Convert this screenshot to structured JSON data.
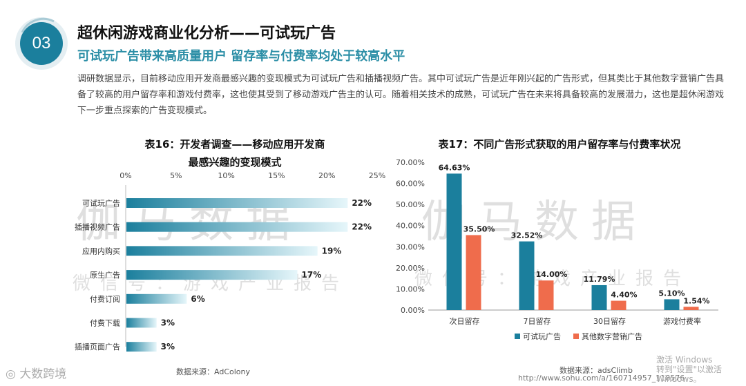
{
  "section": {
    "number": "03",
    "title": "超休闲游戏商业化分析——可试玩广告",
    "subtitle": "可试玩广告带来高质量用户  留存率与付费率均处于较高水平",
    "paragraph": "调研数据显示，目前移动应用开发商最感兴趣的变现模式为可试玩广告和插播视频广告。其中可试玩广告是近年刚兴起的广告形式，但其类比于其他数字营销广告具备了较高的用户留存率和游戏付费率，这也使其受到了移动游戏广告主的认可。随着相关技术的成熟，可试玩广告在未来将具备较高的发展潜力，这也是超休闲游戏下一步重点探索的广告变现模式。"
  },
  "colors": {
    "accent": "#2b8ea6",
    "bar_dark": "#1b7f9d",
    "bar_light": "#e6f6fa",
    "orange": "#ef6c4c"
  },
  "chart_data": [
    {
      "type": "bar",
      "orientation": "horizontal",
      "title_line1": "表16：开发者调查——移动应用开发商",
      "title_line2": "最感兴趣的变现模式",
      "categories": [
        "可试玩广告",
        "插播视频广告",
        "应用内购买",
        "原生广告",
        "付费订阅",
        "付费下载",
        "插播页面广告"
      ],
      "values": [
        22,
        22,
        19,
        17,
        6,
        3,
        3
      ],
      "value_labels": [
        "22%",
        "22%",
        "19%",
        "17%",
        "6%",
        "3%",
        "3%"
      ],
      "xlim": [
        0,
        25
      ],
      "ticks": [
        0,
        5,
        10,
        15,
        20,
        25
      ],
      "tick_labels": [
        "0%",
        "5%",
        "10%",
        "15%",
        "20%",
        "25%"
      ],
      "axis_position": "top",
      "source": "数据来源：AdColony"
    },
    {
      "type": "bar",
      "title": "表17：不同广告形式获取的用户留存率与付费率状况",
      "categories": [
        "次日留存",
        "7日留存",
        "30日留存",
        "游戏付费率"
      ],
      "series": [
        {
          "name": "可试玩广告",
          "values": [
            64.63,
            32.52,
            11.79,
            5.1
          ],
          "labels": [
            "64.63%",
            "32.52%",
            "11.79%",
            "5.10%"
          ],
          "color": "#1b7f9d"
        },
        {
          "name": "其他数字营销广告",
          "values": [
            35.5,
            14.0,
            4.4,
            1.54
          ],
          "labels": [
            "35.50%",
            "14.00%",
            "4.40%",
            "1.54%"
          ],
          "color": "#ef6c4c"
        }
      ],
      "ylim": [
        0,
        70
      ],
      "ticks": [
        0,
        10,
        20,
        30,
        40,
        50,
        60,
        70
      ],
      "tick_labels": [
        "0.00%",
        "10.00%",
        "20.00%",
        "30.00%",
        "40.00%",
        "50.00%",
        "60.00%",
        "70.00%"
      ],
      "legend": "bottom",
      "source": "数据来源：adsClimb"
    }
  ],
  "footer": {
    "url": "http://www.sohu.com/a/160714957_118576",
    "logo_text": "大数跨境",
    "windows_line1": "激活 Windows",
    "windows_line2": "转到\"设置\"以激活 Windows。"
  },
  "watermark": {
    "big": "伽马数据",
    "small": "微信号：游戏产业报告"
  }
}
